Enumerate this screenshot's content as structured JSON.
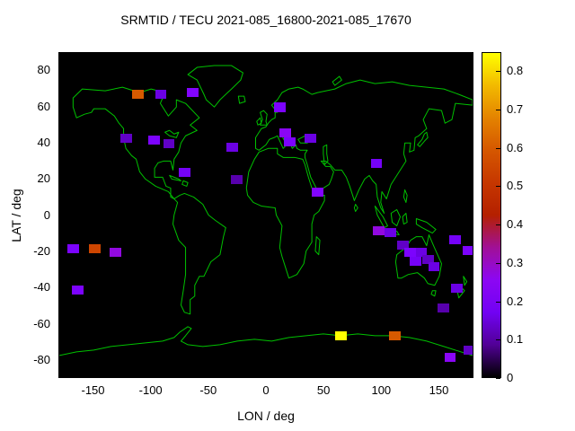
{
  "title": "SRMTID / TECU 2021-085_16800-2021-085_17670",
  "colors": {
    "figure_bg": "#ffffff",
    "plot_bg": "#000000",
    "coastline": "#00c000",
    "text": "#000000"
  },
  "chart_data": {
    "type": "heatmap",
    "title": "SRMTID / TECU 2021-085_16800-2021-085_17670",
    "xlabel": "LON / deg",
    "ylabel": "LAT / deg",
    "xlim": [
      -180,
      180
    ],
    "ylim": [
      -90,
      90
    ],
    "xticks": [
      -150,
      -100,
      -50,
      0,
      50,
      100,
      150
    ],
    "yticks": [
      80,
      60,
      40,
      20,
      0,
      -20,
      -40,
      -60,
      -80
    ],
    "basemap": "world-coastlines-green-on-black",
    "grid": false,
    "cell_size_deg": {
      "lon": 10,
      "lat": 5
    },
    "colorbar": {
      "min": 0,
      "max": 0.85,
      "ticks": [
        0,
        0.1,
        0.2,
        0.3,
        0.4,
        0.5,
        0.6,
        0.7,
        0.8
      ],
      "palette": "gnuplot black-purple-red-orange-yellow",
      "stops": [
        "#000000",
        "#510096",
        "#7202F3",
        "#8C07F3",
        "#A11096",
        "#B42000",
        "#C63700",
        "#D55700",
        "#E48300",
        "#F2BA00",
        "#FFFF00"
      ]
    },
    "cells": [
      [
        -112,
        67,
        0.6
      ],
      [
        -92,
        67,
        0.15
      ],
      [
        -64,
        68,
        0.22
      ],
      [
        11,
        60,
        0.2
      ],
      [
        -122,
        43,
        0.12
      ],
      [
        -98,
        42,
        0.2
      ],
      [
        -85,
        40,
        0.12
      ],
      [
        -30,
        38,
        0.15
      ],
      [
        16,
        46,
        0.25
      ],
      [
        20,
        41,
        0.2
      ],
      [
        38,
        43,
        0.15
      ],
      [
        -71,
        24,
        0.18
      ],
      [
        -26,
        20,
        0.1
      ],
      [
        44,
        13,
        0.22
      ],
      [
        95,
        29,
        0.18
      ],
      [
        97,
        -8,
        0.28
      ],
      [
        107,
        -9,
        0.15
      ],
      [
        -168,
        -18,
        0.2
      ],
      [
        -149,
        -18,
        0.55
      ],
      [
        -131,
        -20,
        0.28
      ],
      [
        118,
        -16,
        0.12
      ],
      [
        124,
        -20,
        0.2
      ],
      [
        134,
        -20,
        0.15
      ],
      [
        129,
        -25,
        0.18
      ],
      [
        140,
        -24,
        0.12
      ],
      [
        145,
        -28,
        0.15
      ],
      [
        163,
        -13,
        0.18
      ],
      [
        175,
        -19,
        0.2
      ],
      [
        -164,
        -41,
        0.2
      ],
      [
        165,
        -40,
        0.15
      ],
      [
        153,
        -51,
        0.1
      ],
      [
        64,
        -66,
        0.85
      ],
      [
        111,
        -66,
        0.6
      ],
      [
        159,
        -78,
        0.25
      ],
      [
        176,
        -74,
        0.12
      ]
    ]
  }
}
